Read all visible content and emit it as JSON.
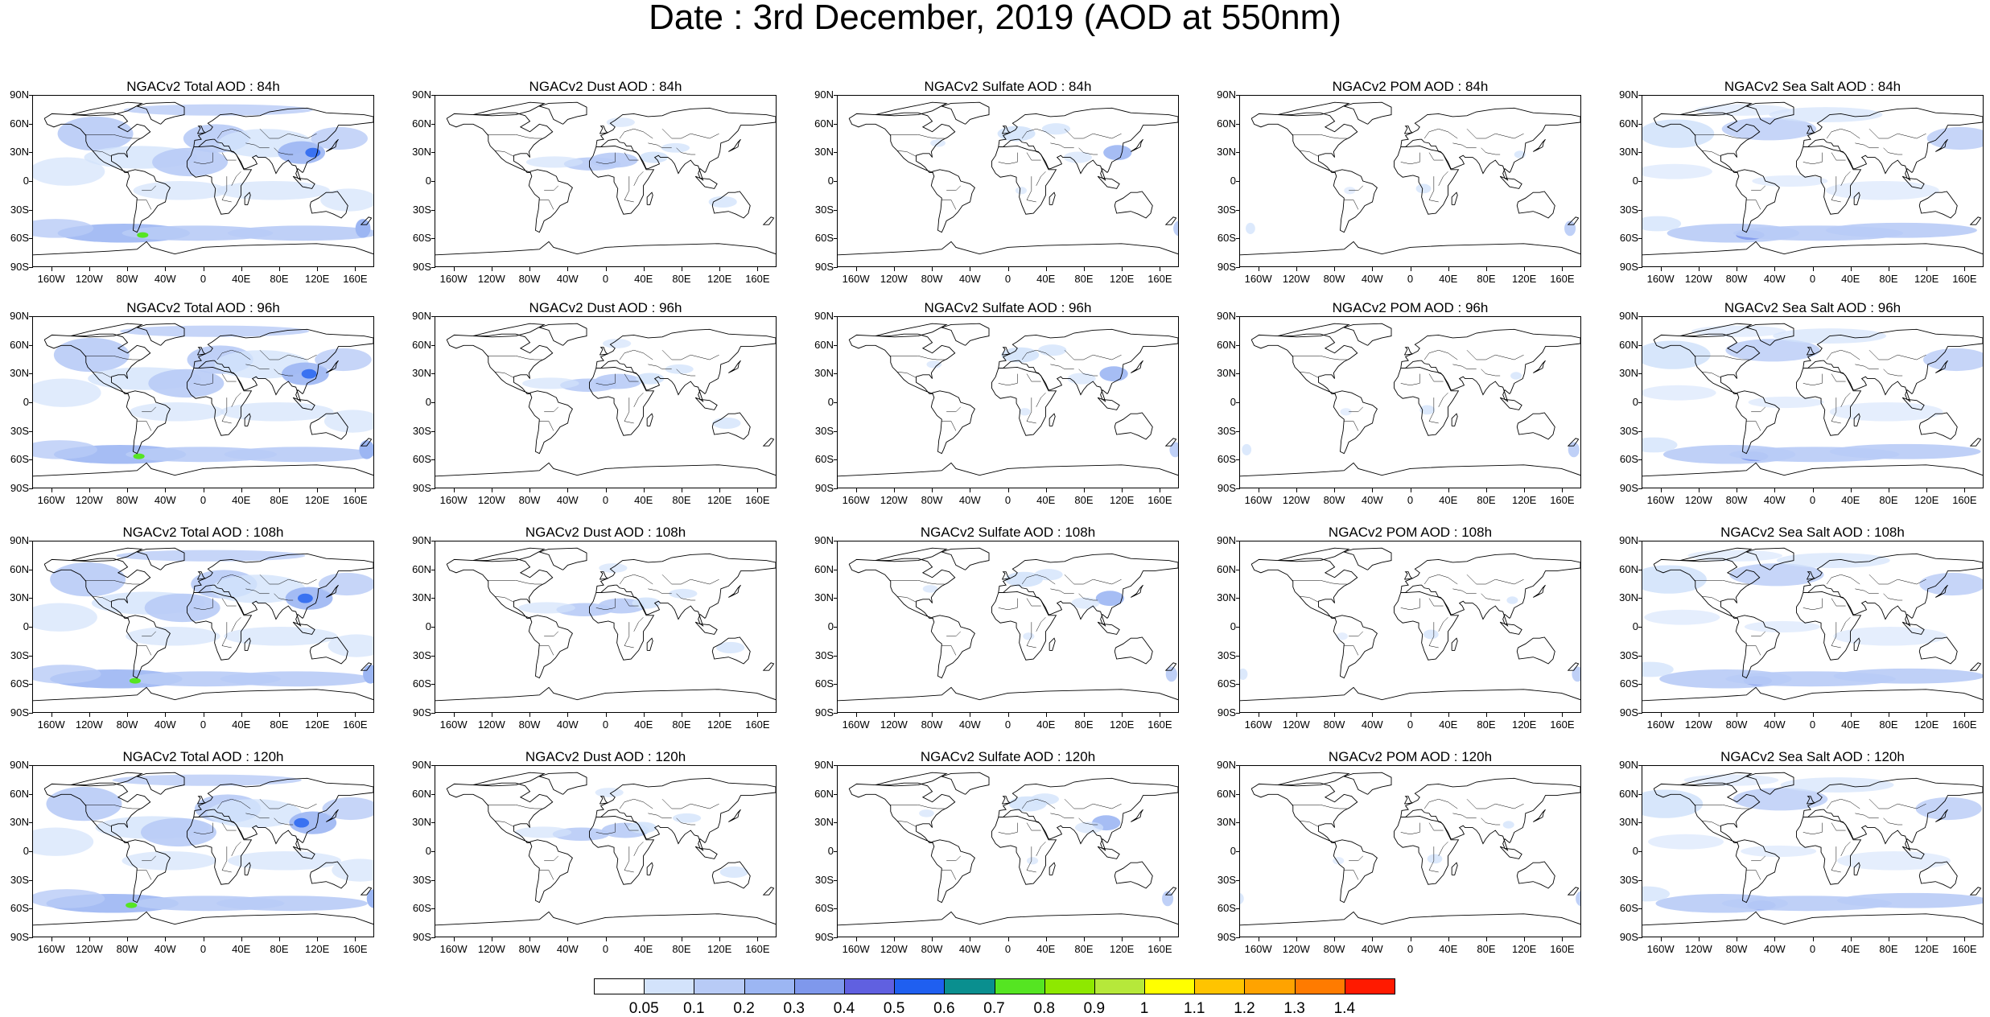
{
  "title": "Date : 3rd December, 2019 (AOD at 550nm)",
  "lat_labels": [
    "90N",
    "60N",
    "30N",
    "0",
    "30S",
    "60S",
    "90S"
  ],
  "lon_labels": [
    "160W",
    "120W",
    "80W",
    "40W",
    "0",
    "40E",
    "80E",
    "120E",
    "160E"
  ],
  "colors": {
    "land_outline": "#000000",
    "levels": [
      "#ffffff",
      "#d3e3fb",
      "#b8cbf6",
      "#9cb6f3",
      "#7f98ec",
      "#6060e0",
      "#1f5ff0",
      "#0a8f8f",
      "#55e522",
      "#8ee800",
      "#b6e83a",
      "#ffff00",
      "#ffc400",
      "#ffa300",
      "#ff7b00",
      "#ff1a00"
    ]
  },
  "panel_titles": [
    [
      "NGACv2 Total AOD : 84h",
      "NGACv2 Dust AOD : 84h",
      "NGACv2 Sulfate AOD : 84h",
      "NGACv2 POM AOD : 84h",
      "NGACv2 Sea Salt AOD : 84h"
    ],
    [
      "NGACv2 Total AOD : 96h",
      "NGACv2 Dust AOD : 96h",
      "NGACv2 Sulfate AOD : 96h",
      "NGACv2 POM AOD : 96h",
      "NGACv2 Sea Salt AOD : 96h"
    ],
    [
      "NGACv2 Total AOD : 108h",
      "NGACv2 Dust AOD : 108h",
      "NGACv2 Sulfate AOD : 108h",
      "NGACv2 POM AOD : 108h",
      "NGACv2 Sea Salt AOD : 108h"
    ],
    [
      "NGACv2 Total AOD : 120h",
      "NGACv2 Dust AOD : 120h",
      "NGACv2 Sulfate AOD : 120h",
      "NGACv2 POM AOD : 120h",
      "NGACv2 Sea Salt  AOD : 120h"
    ]
  ],
  "colorbar": {
    "labels": [
      "0.05",
      "0.1",
      "0.2",
      "0.3",
      "0.4",
      "0.5",
      "0.6",
      "0.7",
      "0.8",
      "0.9",
      "1",
      "1.1",
      "1.2",
      "1.3",
      "1.4"
    ]
  }
}
